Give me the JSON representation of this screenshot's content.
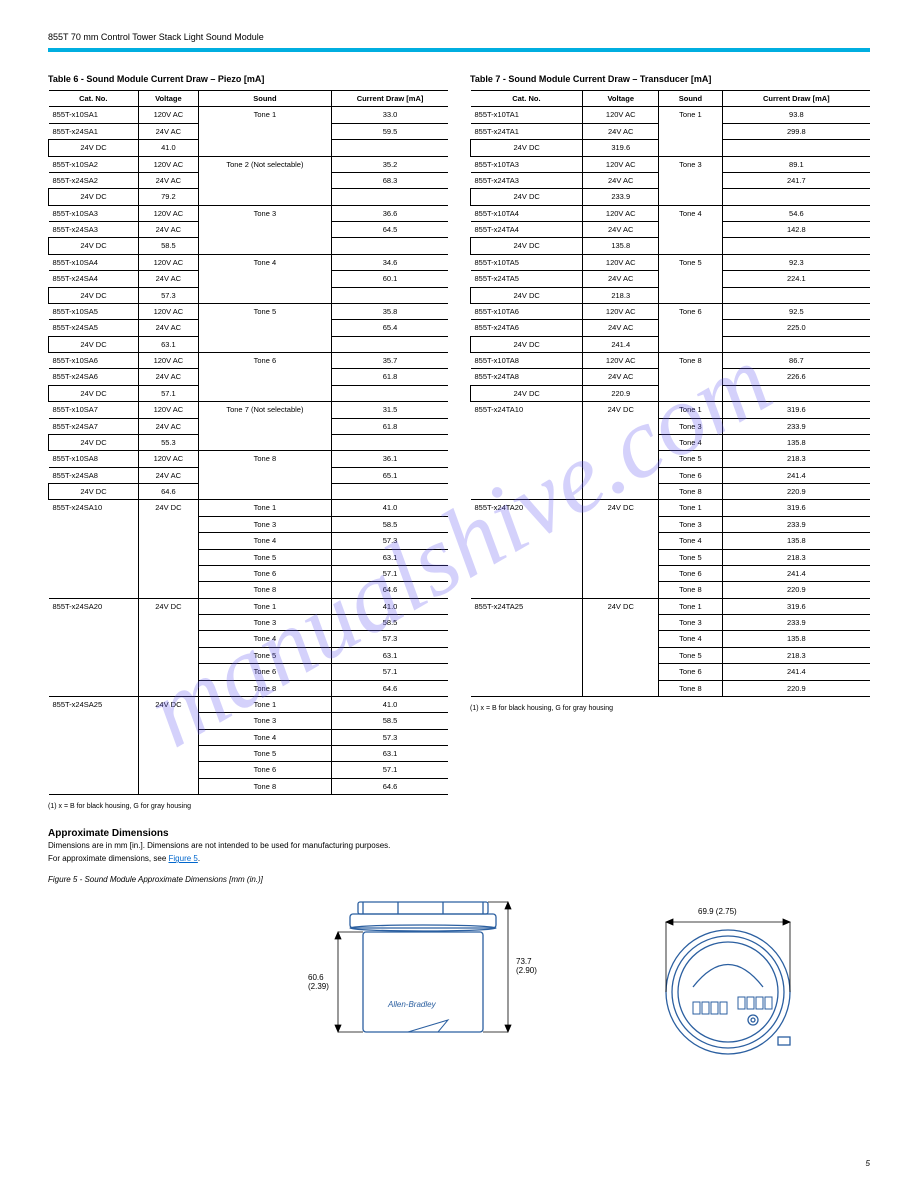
{
  "header": {
    "doc_line": "855T 70 mm Control Tower Stack Light Sound Module"
  },
  "table6": {
    "title": "Table 6 - Sound Module Current Draw – Piezo [mA]",
    "columns": [
      "Cat. No.",
      "Voltage",
      "Sound",
      "Current Draw [mA]"
    ],
    "rows": [
      [
        "855T-x10SA1",
        "120V AC",
        "Tone 1",
        "33.0"
      ],
      [
        "855T-x24SA1",
        "24V AC",
        "",
        "59.5"
      ],
      [
        "",
        "24V DC",
        "",
        "41.0"
      ],
      [
        "855T-x10SA2",
        "120V AC",
        "Tone 2 (Not selectable)",
        "35.2"
      ],
      [
        "855T-x24SA2",
        "24V AC",
        "",
        "68.3"
      ],
      [
        "",
        "24V DC",
        "",
        "79.2"
      ],
      [
        "855T-x10SA3",
        "120V AC",
        "Tone 3",
        "36.6"
      ],
      [
        "855T-x24SA3",
        "24V AC",
        "",
        "64.5"
      ],
      [
        "",
        "24V DC",
        "",
        "58.5"
      ],
      [
        "855T-x10SA4",
        "120V AC",
        "Tone 4",
        "34.6"
      ],
      [
        "855T-x24SA4",
        "24V AC",
        "",
        "60.1"
      ],
      [
        "",
        "24V DC",
        "",
        "57.3"
      ],
      [
        "855T-x10SA5",
        "120V AC",
        "Tone 5",
        "35.8"
      ],
      [
        "855T-x24SA5",
        "24V AC",
        "",
        "65.4"
      ],
      [
        "",
        "24V DC",
        "",
        "63.1"
      ],
      [
        "855T-x10SA6",
        "120V AC",
        "Tone 6",
        "35.7"
      ],
      [
        "855T-x24SA6",
        "24V AC",
        "",
        "61.8"
      ],
      [
        "",
        "24V DC",
        "",
        "57.1"
      ],
      [
        "855T-x10SA7",
        "120V AC",
        "Tone 7 (Not selectable)",
        "31.5"
      ],
      [
        "855T-x24SA7",
        "24V AC",
        "",
        "61.8"
      ],
      [
        "",
        "24V DC",
        "",
        "55.3"
      ],
      [
        "855T-x10SA8",
        "120V AC",
        "Tone 8",
        "36.1"
      ],
      [
        "855T-x24SA8",
        "24V AC",
        "",
        "65.1"
      ],
      [
        "",
        "24V DC",
        "",
        "64.6"
      ],
      [
        "855T-x24SA10",
        "24V DC",
        "Tone 1",
        "41.0"
      ],
      [
        "",
        "",
        "Tone 3",
        "58.5"
      ],
      [
        "",
        "",
        "Tone 4",
        "57.3"
      ],
      [
        "",
        "",
        "Tone 5",
        "63.1"
      ],
      [
        "",
        "",
        "Tone 6",
        "57.1"
      ],
      [
        "",
        "",
        "Tone 8",
        "64.6"
      ],
      [
        "855T-x24SA20",
        "24V DC",
        "Tone 1",
        "41.0"
      ],
      [
        "",
        "",
        "Tone 3",
        "58.5"
      ],
      [
        "",
        "",
        "Tone 4",
        "57.3"
      ],
      [
        "",
        "",
        "Tone 5",
        "63.1"
      ],
      [
        "",
        "",
        "Tone 6",
        "57.1"
      ],
      [
        "",
        "",
        "Tone 8",
        "64.6"
      ],
      [
        "855T-x24SA25",
        "24V DC",
        "Tone 1",
        "41.0"
      ],
      [
        "",
        "",
        "Tone 3",
        "58.5"
      ],
      [
        "",
        "",
        "Tone 4",
        "57.3"
      ],
      [
        "",
        "",
        "Tone 5",
        "63.1"
      ],
      [
        "",
        "",
        "Tone 6",
        "57.1"
      ],
      [
        "",
        "",
        "Tone 8",
        "64.6"
      ]
    ],
    "spanInfo": {
      "0": {
        "2": 3
      },
      "3": {
        "2": 3
      },
      "6": {
        "2": 3
      },
      "9": {
        "2": 3
      },
      "12": {
        "2": 3
      },
      "15": {
        "2": 3
      },
      "18": {
        "2": 3
      },
      "21": {
        "2": 3
      },
      "24": {
        "0": 6,
        "1": 6
      },
      "30": {
        "0": 6,
        "1": 6
      },
      "36": {
        "0": 6,
        "1": 6
      }
    }
  },
  "table7": {
    "title": "Table 7 - Sound Module Current Draw – Transducer [mA]",
    "columns": [
      "Cat. No.",
      "Voltage",
      "Sound",
      "Current Draw [mA]"
    ],
    "rows": [
      [
        "855T-x10TA1",
        "120V AC",
        "Tone 1",
        "93.8"
      ],
      [
        "855T-x24TA1",
        "24V AC",
        "",
        "299.8"
      ],
      [
        "",
        "24V DC",
        "",
        "319.6"
      ],
      [
        "855T-x10TA3",
        "120V AC",
        "Tone 3",
        "89.1"
      ],
      [
        "855T-x24TA3",
        "24V AC",
        "",
        "241.7"
      ],
      [
        "",
        "24V DC",
        "",
        "233.9"
      ],
      [
        "855T-x10TA4",
        "120V AC",
        "Tone 4",
        "54.6"
      ],
      [
        "855T-x24TA4",
        "24V AC",
        "",
        "142.8"
      ],
      [
        "",
        "24V DC",
        "",
        "135.8"
      ],
      [
        "855T-x10TA5",
        "120V AC",
        "Tone 5",
        "92.3"
      ],
      [
        "855T-x24TA5",
        "24V AC",
        "",
        "224.1"
      ],
      [
        "",
        "24V DC",
        "",
        "218.3"
      ],
      [
        "855T-x10TA6",
        "120V AC",
        "Tone 6",
        "92.5"
      ],
      [
        "855T-x24TA6",
        "24V AC",
        "",
        "225.0"
      ],
      [
        "",
        "24V DC",
        "",
        "241.4"
      ],
      [
        "855T-x10TA8",
        "120V AC",
        "Tone 8",
        "86.7"
      ],
      [
        "855T-x24TA8",
        "24V AC",
        "",
        "226.6"
      ],
      [
        "",
        "24V DC",
        "",
        "220.9"
      ],
      [
        "855T-x24TA10",
        "24V DC",
        "Tone 1",
        "319.6"
      ],
      [
        "",
        "",
        "Tone 3",
        "233.9"
      ],
      [
        "",
        "",
        "Tone 4",
        "135.8"
      ],
      [
        "",
        "",
        "Tone 5",
        "218.3"
      ],
      [
        "",
        "",
        "Tone 6",
        "241.4"
      ],
      [
        "",
        "",
        "Tone 8",
        "220.9"
      ],
      [
        "855T-x24TA20",
        "24V DC",
        "Tone 1",
        "319.6"
      ],
      [
        "",
        "",
        "Tone 3",
        "233.9"
      ],
      [
        "",
        "",
        "Tone 4",
        "135.8"
      ],
      [
        "",
        "",
        "Tone 5",
        "218.3"
      ],
      [
        "",
        "",
        "Tone 6",
        "241.4"
      ],
      [
        "",
        "",
        "Tone 8",
        "220.9"
      ],
      [
        "855T-x24TA25",
        "24V DC",
        "Tone 1",
        "319.6"
      ],
      [
        "",
        "",
        "Tone 3",
        "233.9"
      ],
      [
        "",
        "",
        "Tone 4",
        "135.8"
      ],
      [
        "",
        "",
        "Tone 5",
        "218.3"
      ],
      [
        "",
        "",
        "Tone 6",
        "241.4"
      ],
      [
        "",
        "",
        "Tone 8",
        "220.9"
      ]
    ],
    "spanInfo": {
      "0": {
        "2": 3
      },
      "3": {
        "2": 3
      },
      "6": {
        "2": 3
      },
      "9": {
        "2": 3
      },
      "12": {
        "2": 3
      },
      "15": {
        "2": 3
      },
      "18": {
        "0": 6,
        "1": 6
      },
      "24": {
        "0": 6,
        "1": 6
      },
      "30": {
        "0": 6,
        "1": 6
      }
    }
  },
  "footnote": "(1) x = B for black housing, G for gray housing",
  "approxDims": {
    "title": "Approximate Dimensions",
    "subtitle": "Dimensions are in mm [in.]. Dimensions are not intended to be used for manufacturing purposes.",
    "see": "For approximate dimensions, see Figure 5."
  },
  "figure": {
    "label": "Figure 5 - Sound Module Approximate Dimensions [mm (in.)]",
    "dim_h1": "60.6\n(2.39)",
    "dim_h2": "73.7\n(2.90)",
    "brand": "Allen-Bradley",
    "dim_d": "69.9 (2.75)"
  },
  "pageNum": "5",
  "watermark": "manualshive.com",
  "colors": {
    "accent": "#00aee0",
    "watermark": "rgba(100,90,240,0.28)"
  }
}
